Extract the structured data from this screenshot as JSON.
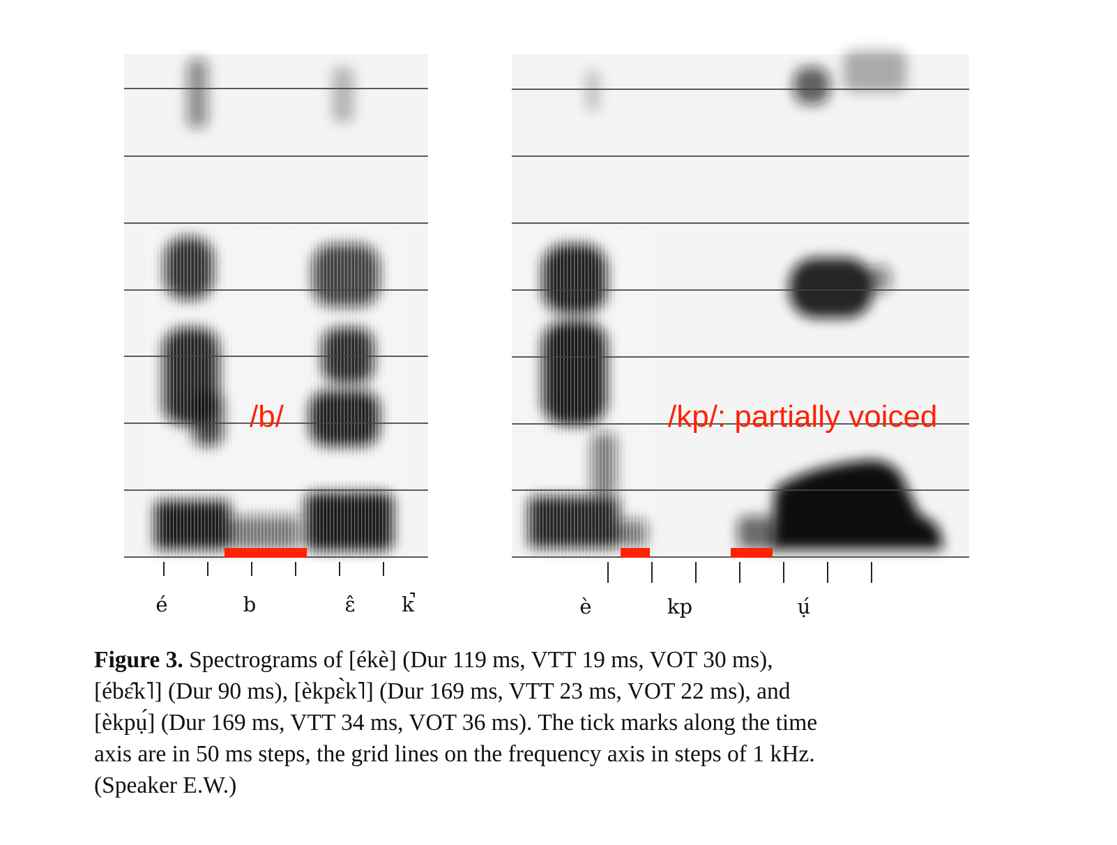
{
  "figure": {
    "left_panel": {
      "phones": [
        "é",
        "b",
        "ɛ̂",
        "k̚"
      ],
      "annotation": "/b/"
    },
    "right_panel": {
      "phones": [
        "è",
        "kp",
        "ụ́"
      ],
      "annotation": "/kp/: partially voiced"
    },
    "colors": {
      "annotation": "#ff2200",
      "voicing_bar": "#ff2200",
      "grid": "#444444",
      "ink": "#111111"
    }
  },
  "caption": {
    "label": "Figure 3.",
    "lines": [
      " Spectrograms of [ékè] (Dur 119 ms, VTT 19 ms, VOT 30 ms),",
      "[ébɛ̂k˥] (Dur 90 ms), [èkpɛ̀k˥] (Dur 169 ms, VTT 23 ms, VOT 22 ms), and",
      "[èkpụ́] (Dur 169 ms, VTT 34 ms, VOT 36 ms). The tick marks along the time",
      "axis are in 50 ms steps, the grid lines on the frequency axis in steps of 1 kHz.",
      "(Speaker E.W.)"
    ]
  }
}
